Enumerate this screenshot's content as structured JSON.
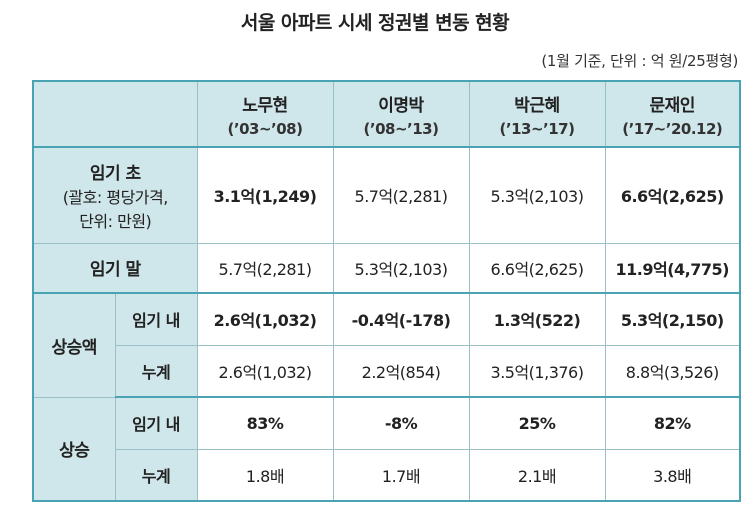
{
  "title": "서울 아파트 시세 정권별 변동 현황",
  "unit_note": "(1월 기준, 단위 : 억 원/25평형)",
  "chart_data": {
    "type": "table",
    "columns": [
      {
        "name": "노무현",
        "period": "(’03~’08)"
      },
      {
        "name": "이명박",
        "period": "(’08~’13)"
      },
      {
        "name": "박근혜",
        "period": "(’13~’17)"
      },
      {
        "name": "문재인",
        "period": "(’17~’20.12)"
      }
    ],
    "rows": {
      "start": {
        "label": "임기 초",
        "sublabel_1": "(괄호: 평당가격,",
        "sublabel_2": "단위: 만원)",
        "cells": [
          "3.1억(1,249)",
          "5.7억(2,281)",
          "5.3억(2,103)",
          "6.6억(2,625)"
        ]
      },
      "end": {
        "label": "임기 말",
        "cells": [
          "5.7억(2,281)",
          "5.3억(2,103)",
          "6.6억(2,625)",
          "11.9억(4,775)"
        ]
      },
      "amount": {
        "label": "상승액",
        "within": {
          "label": "임기 내",
          "cells": [
            "2.6억(1,032)",
            "-0.4억(-178)",
            "1.3억(522)",
            "5.3억(2,150)"
          ]
        },
        "cumulative": {
          "label": "누계",
          "cells": [
            "2.6억(1,032)",
            "2.2억(854)",
            "3.5억(1,376)",
            "8.8억(3,526)"
          ]
        }
      },
      "rate": {
        "label": "상승",
        "within": {
          "label": "임기 내",
          "cells": [
            "83%",
            "-8%",
            "25%",
            "82%"
          ]
        },
        "cumulative": {
          "label": "누계",
          "cells": [
            "1.8배",
            "1.7배",
            "2.1배",
            "3.8배"
          ]
        }
      }
    }
  }
}
